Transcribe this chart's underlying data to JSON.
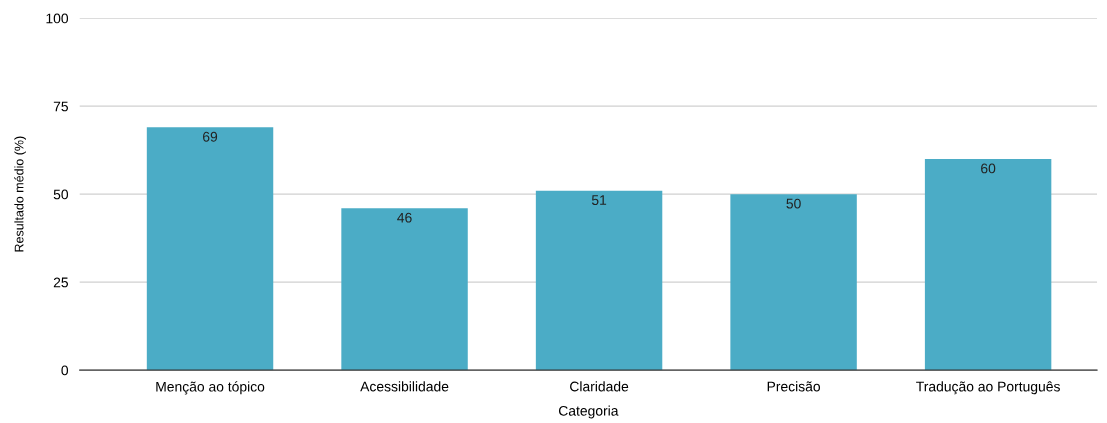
{
  "chart_data": {
    "type": "bar",
    "categories": [
      "Menção ao tópico",
      "Acessibilidade",
      "Claridade",
      "Precisão",
      "Tradução ao Português"
    ],
    "values": [
      69,
      46,
      51,
      50,
      60
    ],
    "color": "#4bacc6",
    "xlabel": "Categoria",
    "ylabel": "Resultado médio (%)",
    "ylim": [
      0,
      100
    ],
    "yticks": [
      0,
      25,
      50,
      75,
      100
    ],
    "grid": "y",
    "data_labels": true
  }
}
